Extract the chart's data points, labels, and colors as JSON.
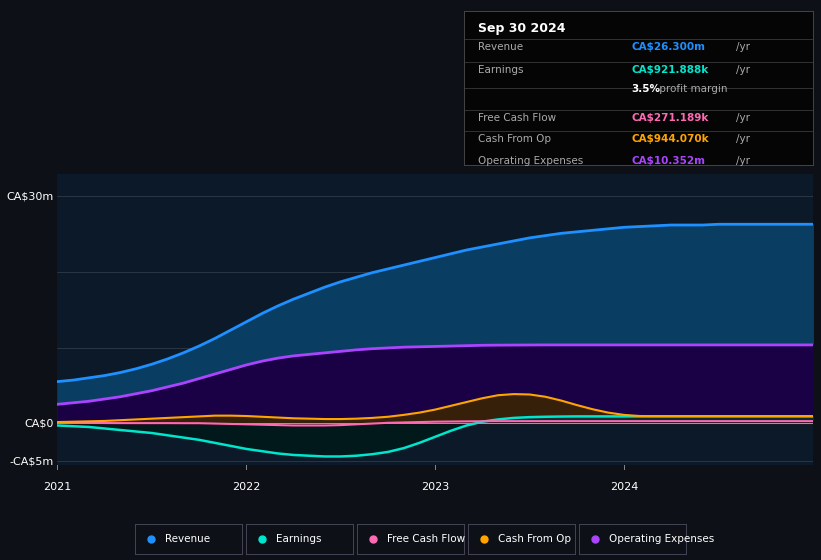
{
  "bg_color": "#0d1117",
  "chart_bg": "#0b1929",
  "title_box": {
    "date": "Sep 30 2024",
    "rows": [
      {
        "label": "Revenue",
        "value": "CA$26.300m",
        "unit": "/yr",
        "value_color": "#1e90ff"
      },
      {
        "label": "Earnings",
        "value": "CA$921.888k",
        "unit": "/yr",
        "value_color": "#00e5cc"
      },
      {
        "label": "",
        "value": "3.5%",
        "unit": " profit margin",
        "value_color": "#ffffff"
      },
      {
        "label": "Free Cash Flow",
        "value": "CA$271.189k",
        "unit": "/yr",
        "value_color": "#ff69b4"
      },
      {
        "label": "Cash From Op",
        "value": "CA$944.070k",
        "unit": "/yr",
        "value_color": "#ffa500"
      },
      {
        "label": "Operating Expenses",
        "value": "CA$10.352m",
        "unit": "/yr",
        "value_color": "#aa44ff"
      }
    ]
  },
  "ylim": [
    -5.5,
    33
  ],
  "n_points": 49,
  "series": {
    "revenue": {
      "color": "#1e90ff",
      "fill_color": "#0a3d62",
      "label": "Revenue",
      "y": [
        5.5,
        5.7,
        6.0,
        6.3,
        6.7,
        7.2,
        7.8,
        8.5,
        9.3,
        10.2,
        11.2,
        12.3,
        13.4,
        14.5,
        15.5,
        16.4,
        17.2,
        18.0,
        18.7,
        19.3,
        19.9,
        20.4,
        20.9,
        21.4,
        21.9,
        22.4,
        22.9,
        23.3,
        23.7,
        24.1,
        24.5,
        24.8,
        25.1,
        25.3,
        25.5,
        25.7,
        25.9,
        26.0,
        26.1,
        26.2,
        26.2,
        26.2,
        26.3,
        26.3,
        26.3,
        26.3,
        26.3,
        26.3,
        26.3
      ]
    },
    "earnings": {
      "color": "#00e5cc",
      "fill_color": "#003333",
      "label": "Earnings",
      "y": [
        -0.3,
        -0.4,
        -0.5,
        -0.7,
        -0.9,
        -1.1,
        -1.3,
        -1.6,
        -1.9,
        -2.2,
        -2.6,
        -3.0,
        -3.4,
        -3.7,
        -4.0,
        -4.2,
        -4.3,
        -4.4,
        -4.4,
        -4.3,
        -4.1,
        -3.8,
        -3.3,
        -2.6,
        -1.8,
        -1.0,
        -0.3,
        0.2,
        0.5,
        0.7,
        0.8,
        0.85,
        0.88,
        0.9,
        0.9,
        0.9,
        0.9,
        0.9,
        0.9,
        0.9,
        0.9,
        0.9,
        0.9,
        0.9,
        0.9,
        0.9,
        0.9,
        0.9,
        0.9
      ]
    },
    "free_cash_flow": {
      "color": "#ff69b4",
      "fill_color": "#330011",
      "label": "Free Cash Flow",
      "y": [
        0.05,
        0.04,
        0.03,
        0.02,
        0.01,
        0.01,
        0.01,
        0.01,
        0.0,
        0.0,
        -0.05,
        -0.1,
        -0.15,
        -0.2,
        -0.25,
        -0.3,
        -0.3,
        -0.3,
        -0.25,
        -0.15,
        -0.05,
        0.05,
        0.1,
        0.15,
        0.2,
        0.22,
        0.24,
        0.26,
        0.27,
        0.27,
        0.27,
        0.27,
        0.27,
        0.27,
        0.27,
        0.27,
        0.27,
        0.27,
        0.27,
        0.27,
        0.27,
        0.27,
        0.27,
        0.27,
        0.27,
        0.27,
        0.27,
        0.27,
        0.27
      ]
    },
    "cash_from_op": {
      "color": "#ffa500",
      "fill_color": "#332200",
      "label": "Cash From Op",
      "y": [
        0.15,
        0.2,
        0.25,
        0.3,
        0.4,
        0.5,
        0.6,
        0.7,
        0.8,
        0.9,
        1.0,
        1.0,
        0.95,
        0.85,
        0.75,
        0.65,
        0.6,
        0.55,
        0.55,
        0.6,
        0.7,
        0.85,
        1.1,
        1.4,
        1.8,
        2.3,
        2.8,
        3.3,
        3.7,
        3.85,
        3.8,
        3.5,
        3.0,
        2.4,
        1.85,
        1.4,
        1.1,
        0.95,
        0.94,
        0.94,
        0.94,
        0.94,
        0.94,
        0.94,
        0.94,
        0.94,
        0.94,
        0.94,
        0.94
      ]
    },
    "operating_expenses": {
      "color": "#aa44ff",
      "fill_color": "#1a0033",
      "label": "Operating Expenses",
      "y": [
        2.5,
        2.7,
        2.9,
        3.2,
        3.5,
        3.9,
        4.3,
        4.8,
        5.3,
        5.9,
        6.5,
        7.1,
        7.7,
        8.2,
        8.6,
        8.9,
        9.1,
        9.3,
        9.5,
        9.7,
        9.85,
        9.95,
        10.05,
        10.1,
        10.15,
        10.2,
        10.25,
        10.3,
        10.32,
        10.33,
        10.34,
        10.35,
        10.35,
        10.35,
        10.35,
        10.35,
        10.35,
        10.35,
        10.35,
        10.35,
        10.35,
        10.35,
        10.35,
        10.35,
        10.35,
        10.35,
        10.35,
        10.35,
        10.35
      ]
    }
  },
  "legend": [
    {
      "label": "Revenue",
      "color": "#1e90ff"
    },
    {
      "label": "Earnings",
      "color": "#00e5cc"
    },
    {
      "label": "Free Cash Flow",
      "color": "#ff69b4"
    },
    {
      "label": "Cash From Op",
      "color": "#ffa500"
    },
    {
      "label": "Operating Expenses",
      "color": "#aa44ff"
    }
  ],
  "grid_y_values": [
    -5,
    0,
    10,
    20,
    30
  ],
  "ytick_labels_map": {
    "-5": "-CA$5m",
    "0": "CA$0",
    "30": "CA$30m"
  },
  "xtick_positions": [
    0,
    12,
    24,
    36,
    48
  ],
  "xtick_labels": [
    "2021",
    "2022",
    "2023",
    "2024",
    ""
  ]
}
